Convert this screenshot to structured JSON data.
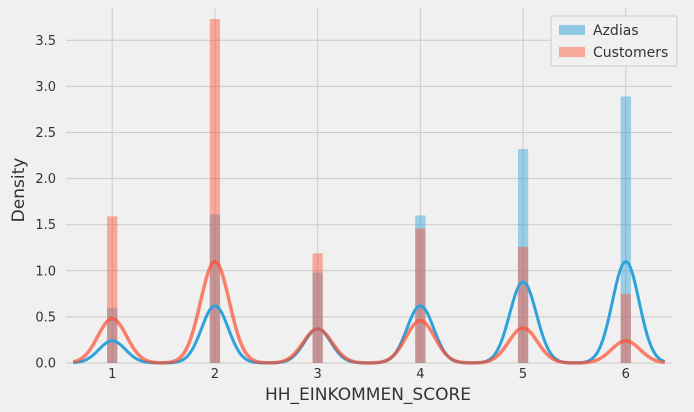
{
  "chart_data": {
    "type": "bar",
    "xlabel": "HH_EINKOMMEN_SCORE",
    "ylabel": "Density",
    "categories": [
      "1",
      "2",
      "3",
      "4",
      "5",
      "6"
    ],
    "xlim": [
      0.55,
      6.45
    ],
    "ylim": [
      0,
      3.85
    ],
    "yticks": [
      "0.0",
      "0.5",
      "1.0",
      "1.5",
      "2.0",
      "2.5",
      "3.0",
      "3.5"
    ],
    "grid": true,
    "legend_position": "top-right",
    "series": [
      {
        "name": "Azdias",
        "color": "#30a2da",
        "values": [
          0.6,
          1.61,
          0.98,
          1.6,
          2.32,
          2.89
        ],
        "kde_peaks": [
          0.24,
          0.62,
          0.37,
          0.62,
          0.88,
          1.1
        ]
      },
      {
        "name": "Customers",
        "color": "#fc4f30",
        "values": [
          1.59,
          3.73,
          1.19,
          1.46,
          1.26,
          0.75
        ],
        "kde_peaks": [
          0.48,
          1.1,
          0.37,
          0.46,
          0.38,
          0.24
        ]
      }
    ]
  }
}
